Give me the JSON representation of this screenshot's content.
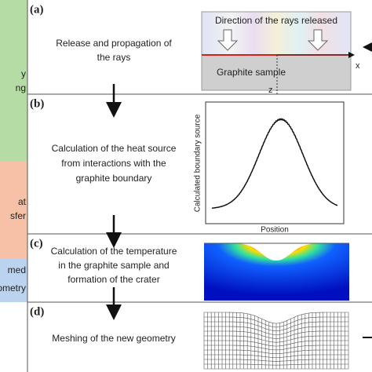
{
  "side_labels": [
    [
      "y",
      "ng"
    ],
    [
      "at",
      "sfer"
    ],
    [
      "med",
      "eometry"
    ]
  ],
  "panels": [
    {
      "label": "(a)",
      "lines": [
        "Release and propagation of",
        "the rays"
      ]
    },
    {
      "label": "(b)",
      "lines": [
        "Calculation of the heat source",
        "from interactions with the",
        "graphite boundary"
      ]
    },
    {
      "label": "(c)",
      "lines": [
        "Calculation of the temperature",
        "in the graphite sample and",
        "formation of the crater"
      ]
    },
    {
      "label": "(d)",
      "lines": [
        "Meshing of the new geometry"
      ]
    }
  ],
  "figure_a": {
    "rays": "Direction of the rays released",
    "sample": "Graphite sample",
    "x_axis": "x",
    "z_axis": "z"
  },
  "figure_b": {
    "ylabel": "Calculated boundary source",
    "xlabel": "Position"
  }
}
